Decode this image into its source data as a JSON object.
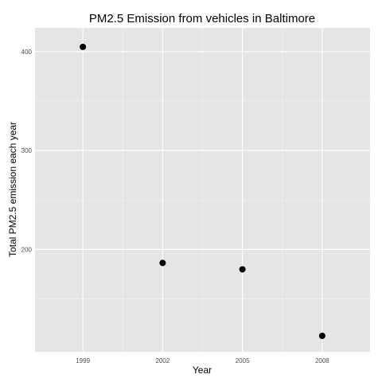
{
  "chart_data": {
    "type": "scatter",
    "title": "PM2.5 Emission from vehicles in Baltimore",
    "xlabel": "Year",
    "ylabel": "Total PM2.5 emission each year",
    "x": [
      1999,
      2002,
      2005,
      2008
    ],
    "x_tick_labels": [
      "1999",
      "2002",
      "2005",
      "2008"
    ],
    "y": [
      404.8,
      186.3,
      179.8,
      112.6
    ],
    "y_ticks": [
      200,
      300,
      400
    ],
    "y_tick_labels": [
      "200",
      "300",
      "400"
    ],
    "xlim": [
      1997.2,
      2009.8
    ],
    "ylim": [
      96.5,
      424.0
    ],
    "grid": true,
    "colors": {
      "panel": "#e5e5e5",
      "grid_major": "#ffffff",
      "grid_minor": "#f2f2f2",
      "point": "#000000"
    }
  }
}
